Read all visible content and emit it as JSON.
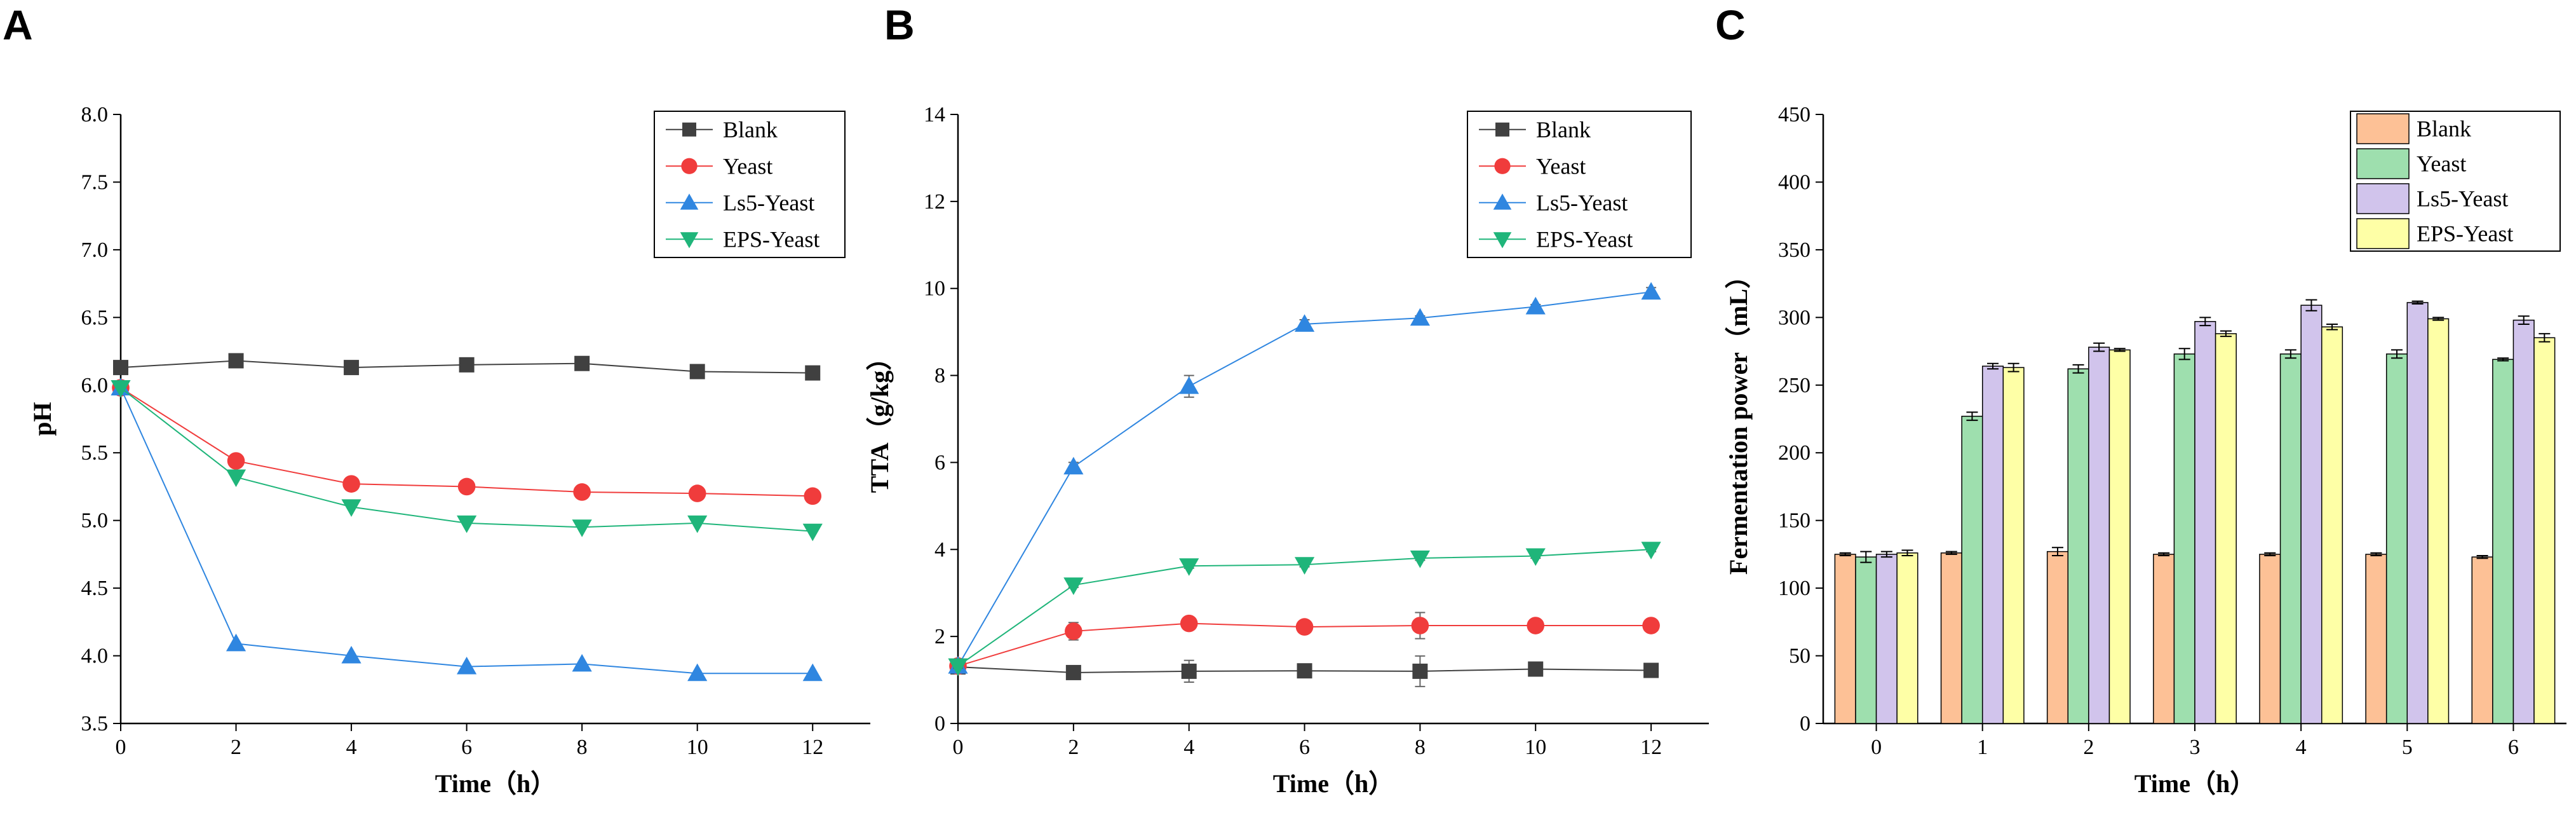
{
  "panels": {
    "a": "A",
    "b": "B",
    "c": "C"
  },
  "chart_data": [
    {
      "type": "line",
      "panel": "A",
      "xlabel": "Time（h）",
      "ylabel": "pH",
      "xlim": [
        0,
        13
      ],
      "ylim": [
        3.5,
        8.0
      ],
      "xticks": [
        0,
        2,
        4,
        6,
        8,
        10,
        12
      ],
      "yticks": [
        "3.5",
        "4.0",
        "4.5",
        "5.0",
        "5.5",
        "6.0",
        "6.5",
        "7.0",
        "7.5",
        "8.0"
      ],
      "legend_position": "top-right",
      "x": [
        0,
        2,
        4,
        6,
        8,
        10,
        12
      ],
      "series": [
        {
          "name": "Blank",
          "color": "#404040",
          "marker": "square",
          "values": [
            6.13,
            6.18,
            6.13,
            6.15,
            6.16,
            6.1,
            6.09
          ]
        },
        {
          "name": "Yeast",
          "color": "#f03c3c",
          "marker": "circle",
          "values": [
            5.98,
            5.44,
            5.27,
            5.25,
            5.21,
            5.2,
            5.18
          ]
        },
        {
          "name": "Ls5-Yeast",
          "color": "#2f86e0",
          "marker": "triangle-up",
          "values": [
            5.98,
            4.09,
            4.0,
            3.92,
            3.94,
            3.87,
            3.87
          ]
        },
        {
          "name": "EPS-Yeast",
          "color": "#1fb57a",
          "marker": "triangle-down",
          "values": [
            5.98,
            5.32,
            5.1,
            4.98,
            4.95,
            4.98,
            4.92
          ]
        }
      ]
    },
    {
      "type": "line",
      "panel": "B",
      "xlabel": "Time（h）",
      "ylabel": "TTA（g/kg）",
      "xlim": [
        0,
        13
      ],
      "ylim": [
        0,
        14
      ],
      "xticks": [
        0,
        2,
        4,
        6,
        8,
        10,
        12
      ],
      "yticks": [
        "0",
        "2",
        "4",
        "6",
        "8",
        "10",
        "12",
        "14"
      ],
      "legend_position": "top-right",
      "x": [
        0,
        2,
        4,
        6,
        8,
        10,
        12
      ],
      "series": [
        {
          "name": "Blank",
          "color": "#404040",
          "marker": "square",
          "values": [
            1.3,
            1.17,
            1.2,
            1.21,
            1.2,
            1.25,
            1.22
          ],
          "errors": [
            0.05,
            0.05,
            0.25,
            0.05,
            0.35,
            0.05,
            0.05
          ]
        },
        {
          "name": "Yeast",
          "color": "#f03c3c",
          "marker": "circle",
          "values": [
            1.32,
            2.12,
            2.3,
            2.22,
            2.25,
            2.25,
            2.25
          ],
          "errors": [
            0.05,
            0.2,
            0.05,
            0.05,
            0.3,
            0.05,
            0.05
          ]
        },
        {
          "name": "Ls5-Yeast",
          "color": "#2f86e0",
          "marker": "triangle-up",
          "values": [
            1.32,
            5.9,
            7.75,
            9.18,
            9.32,
            9.58,
            9.92
          ],
          "errors": [
            0.05,
            0.1,
            0.25,
            0.1,
            0.05,
            0.05,
            0.1
          ]
        },
        {
          "name": "EPS-Yeast",
          "color": "#1fb57a",
          "marker": "triangle-down",
          "values": [
            1.32,
            3.18,
            3.62,
            3.65,
            3.8,
            3.85,
            4.0
          ],
          "errors": [
            0.05,
            0.05,
            0.05,
            0.05,
            0.05,
            0.05,
            0.05
          ]
        }
      ]
    },
    {
      "type": "bar",
      "panel": "C",
      "xlabel": "Time（h）",
      "ylabel": "Fermentation power（mL）",
      "ylim": [
        0,
        450
      ],
      "yticks": [
        "0",
        "50",
        "100",
        "150",
        "200",
        "250",
        "300",
        "350",
        "400",
        "450"
      ],
      "categories": [
        "0",
        "1",
        "2",
        "3",
        "4",
        "5",
        "6"
      ],
      "legend_position": "top-right",
      "series": [
        {
          "name": "Blank",
          "color": "#fdc196",
          "values": [
            125,
            126,
            127,
            125,
            125,
            125,
            123
          ],
          "errors": [
            1,
            1,
            3,
            1,
            1,
            1,
            1
          ]
        },
        {
          "name": "Yeast",
          "color": "#9edfae",
          "values": [
            123,
            227,
            262,
            273,
            273,
            273,
            269
          ],
          "errors": [
            4,
            3,
            3,
            4,
            3,
            3,
            1
          ]
        },
        {
          "name": "Ls5-Yeast",
          "color": "#d1c4ec",
          "values": [
            125,
            264,
            278,
            297,
            309,
            311,
            298
          ],
          "errors": [
            2,
            2,
            3,
            3,
            4,
            1,
            3
          ]
        },
        {
          "name": "EPS-Yeast",
          "color": "#feffa6",
          "values": [
            126,
            263,
            276,
            288,
            293,
            299,
            285
          ],
          "errors": [
            2,
            3,
            1,
            2,
            2,
            1,
            3
          ]
        }
      ]
    }
  ]
}
